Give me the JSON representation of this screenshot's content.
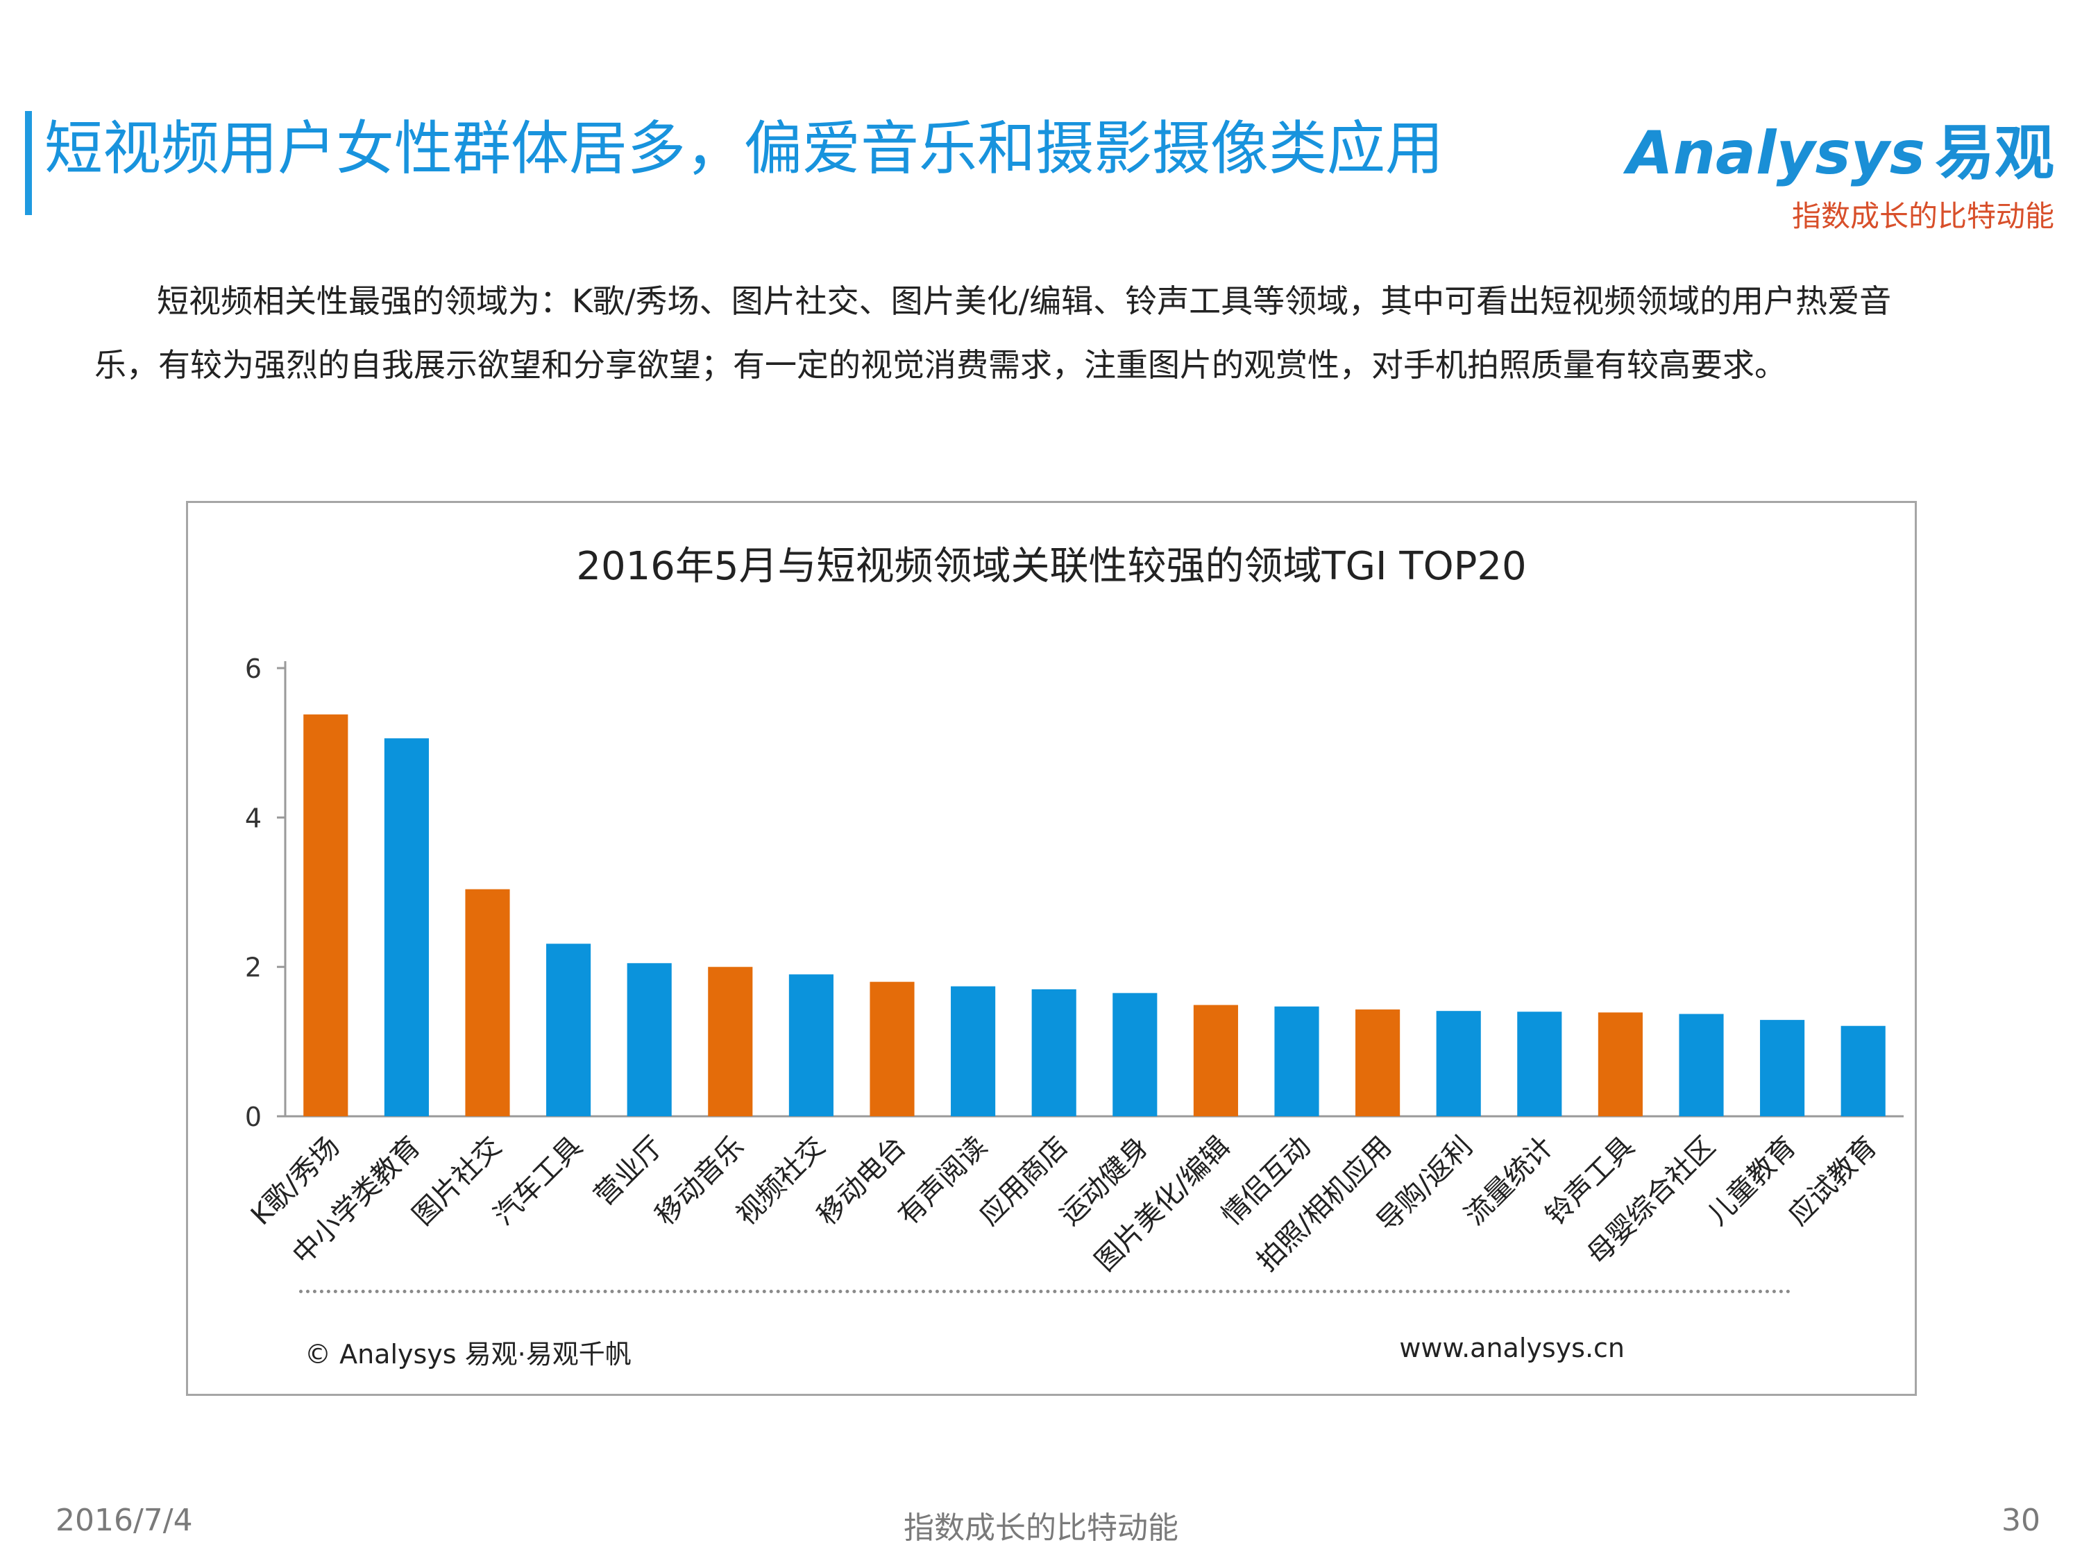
{
  "header": {
    "title": "短视频用户女性群体居多，偏爱音乐和摄影摄像类应用",
    "brand_logo_en": "Analysys",
    "brand_logo_cn": "易观",
    "brand_slogan": "指数成长的比特动能"
  },
  "intro": "短视频相关性最强的领域为：K歌/秀场、图片社交、图片美化/编辑、铃声工具等领域，其中可看出短视频领域的用户热爱音乐，有较为强烈的自我展示欲望和分享欲望；有一定的视觉消费需求，注重图片的观赏性，对手机拍照质量有较高要求。",
  "chart_source": {
    "copyright": "© Analysys 易观·易观千帆",
    "website": "www.analysys.cn"
  },
  "footer": {
    "date": "2016/7/4",
    "slogan": "指数成长的比特动能",
    "page": "30"
  },
  "colors": {
    "accent": "#1893dd",
    "orange": "#e46c0a",
    "blue": "#0b93dc"
  },
  "chart_data": {
    "type": "bar",
    "title": "2016年5月与短视频领域关联性较强的领域TGI TOP20",
    "xlabel": "",
    "ylabel": "",
    "ylim": [
      0,
      6
    ],
    "yticks": [
      0,
      2,
      4,
      6
    ],
    "grid": false,
    "legend": "none",
    "categories": [
      "K歌/秀场",
      "中小学类教育",
      "图片社交",
      "汽车工具",
      "营业厅",
      "移动音乐",
      "视频社交",
      "移动电台",
      "有声阅读",
      "应用商店",
      "运动健身",
      "图片美化/编辑",
      "情侣互动",
      "拍照/相机应用",
      "导购/返利",
      "流量统计",
      "铃声工具",
      "母婴综合社区",
      "儿童教育",
      "应试教育"
    ],
    "values": [
      5.38,
      5.06,
      3.04,
      2.31,
      2.05,
      2.0,
      1.9,
      1.8,
      1.74,
      1.7,
      1.65,
      1.49,
      1.47,
      1.43,
      1.41,
      1.4,
      1.39,
      1.37,
      1.29,
      1.21
    ],
    "bar_colors": [
      "#e46c0a",
      "#0b93dc",
      "#e46c0a",
      "#0b93dc",
      "#0b93dc",
      "#e46c0a",
      "#0b93dc",
      "#e46c0a",
      "#0b93dc",
      "#0b93dc",
      "#0b93dc",
      "#e46c0a",
      "#0b93dc",
      "#e46c0a",
      "#0b93dc",
      "#0b93dc",
      "#e46c0a",
      "#0b93dc",
      "#0b93dc",
      "#0b93dc"
    ]
  }
}
